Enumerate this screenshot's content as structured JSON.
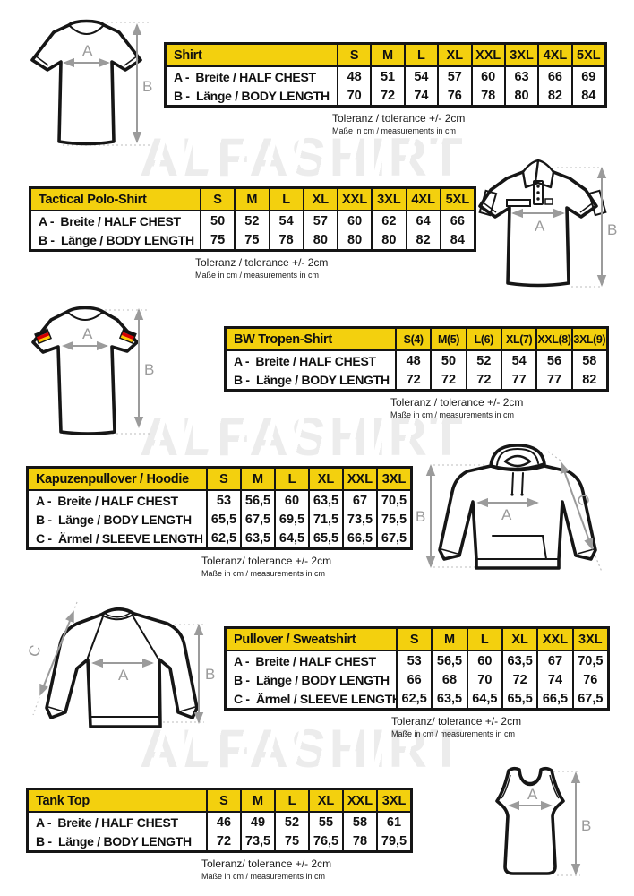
{
  "watermark": {
    "text": "ALFASHIRT"
  },
  "colors": {
    "header_yellow": "#F3D00E",
    "arrow_gray": "#9B9B9B",
    "watermark_gray": "#ECECEC",
    "flag_black": "#111111",
    "flag_red": "#D40000",
    "flag_gold": "#FFC800"
  },
  "sections": [
    {
      "title": "Shirt",
      "sizes": [
        "S",
        "M",
        "L",
        "XL",
        "XXL",
        "3XL",
        "4XL",
        "5XL"
      ],
      "rows": [
        {
          "label": "A -  Breite / HALF CHEST",
          "values": [
            "48",
            "51",
            "54",
            "57",
            "60",
            "63",
            "66",
            "69"
          ]
        },
        {
          "label": "B -  Länge / BODY LENGTH",
          "values": [
            "70",
            "72",
            "74",
            "76",
            "78",
            "80",
            "82",
            "84"
          ]
        }
      ],
      "tolerance": "Toleranz / tolerance +/- 2cm",
      "note": "Maße in cm / measurements in cm",
      "dims": {
        "a": "A",
        "b": "B"
      }
    },
    {
      "title": "Tactical Polo-Shirt",
      "sizes": [
        "S",
        "M",
        "L",
        "XL",
        "XXL",
        "3XL",
        "4XL",
        "5XL"
      ],
      "rows": [
        {
          "label": "A -  Breite / HALF CHEST",
          "values": [
            "50",
            "52",
            "54",
            "57",
            "60",
            "62",
            "64",
            "66"
          ]
        },
        {
          "label": "B -  Länge / BODY LENGTH",
          "values": [
            "75",
            "75",
            "78",
            "80",
            "80",
            "80",
            "82",
            "84"
          ]
        }
      ],
      "tolerance": "Toleranz / tolerance +/- 2cm",
      "note": "Maße in cm / measurements in cm",
      "dims": {
        "a": "A",
        "b": "B"
      }
    },
    {
      "title": "BW Tropen-Shirt",
      "sizes": [
        "S(4)",
        "M(5)",
        "L(6)",
        "XL(7)",
        "XXL(8)",
        "3XL(9)"
      ],
      "rows": [
        {
          "label": "A -  Breite / HALF CHEST",
          "values": [
            "48",
            "50",
            "52",
            "54",
            "56",
            "58"
          ]
        },
        {
          "label": "B -  Länge / BODY LENGTH",
          "values": [
            "72",
            "72",
            "72",
            "77",
            "77",
            "82"
          ]
        }
      ],
      "tolerance": "Toleranz / tolerance +/- 2cm",
      "note": "Maße in cm / measurements in cm",
      "dims": {
        "a": "A",
        "b": "B"
      }
    },
    {
      "title": "Kapuzenpullover / Hoodie",
      "sizes": [
        "S",
        "M",
        "L",
        "XL",
        "XXL",
        "3XL"
      ],
      "rows": [
        {
          "label": "A -  Breite / HALF CHEST",
          "values": [
            "53",
            "56,5",
            "60",
            "63,5",
            "67",
            "70,5"
          ]
        },
        {
          "label": "B -  Länge / BODY LENGTH",
          "values": [
            "65,5",
            "67,5",
            "69,5",
            "71,5",
            "73,5",
            "75,5"
          ]
        },
        {
          "label": "C -  Ärmel / SLEEVE LENGTH",
          "values": [
            "62,5",
            "63,5",
            "64,5",
            "65,5",
            "66,5",
            "67,5"
          ]
        }
      ],
      "tolerance": "Toleranz/ tolerance +/- 2cm",
      "note": "Maße in cm / measurements in cm",
      "dims": {
        "a": "A",
        "b": "B",
        "c": "C"
      }
    },
    {
      "title": "Pullover / Sweatshirt",
      "sizes": [
        "S",
        "M",
        "L",
        "XL",
        "XXL",
        "3XL"
      ],
      "rows": [
        {
          "label": "A -  Breite / HALF CHEST",
          "values": [
            "53",
            "56,5",
            "60",
            "63,5",
            "67",
            "70,5"
          ]
        },
        {
          "label": "B -  Länge / BODY LENGTH",
          "values": [
            "66",
            "68",
            "70",
            "72",
            "74",
            "76"
          ]
        },
        {
          "label": "C -  Ärmel / SLEEVE LENGTH",
          "values": [
            "62,5",
            "63,5",
            "64,5",
            "65,5",
            "66,5",
            "67,5"
          ]
        }
      ],
      "tolerance": "Toleranz/ tolerance +/- 2cm",
      "note": "Maße in cm / measurements in cm",
      "dims": {
        "a": "A",
        "b": "B",
        "c": "C"
      }
    },
    {
      "title": "Tank Top",
      "sizes": [
        "S",
        "M",
        "L",
        "XL",
        "XXL",
        "3XL"
      ],
      "rows": [
        {
          "label": "A -  Breite / HALF CHEST",
          "values": [
            "46",
            "49",
            "52",
            "55",
            "58",
            "61"
          ]
        },
        {
          "label": "B -  Länge / BODY LENGTH",
          "values": [
            "72",
            "73,5",
            "75",
            "76,5",
            "78",
            "79,5"
          ]
        }
      ],
      "tolerance": "Toleranz/ tolerance +/- 2cm",
      "note": "Maße in cm / measurements in cm",
      "dims": {
        "a": "A",
        "b": "B"
      }
    }
  ]
}
